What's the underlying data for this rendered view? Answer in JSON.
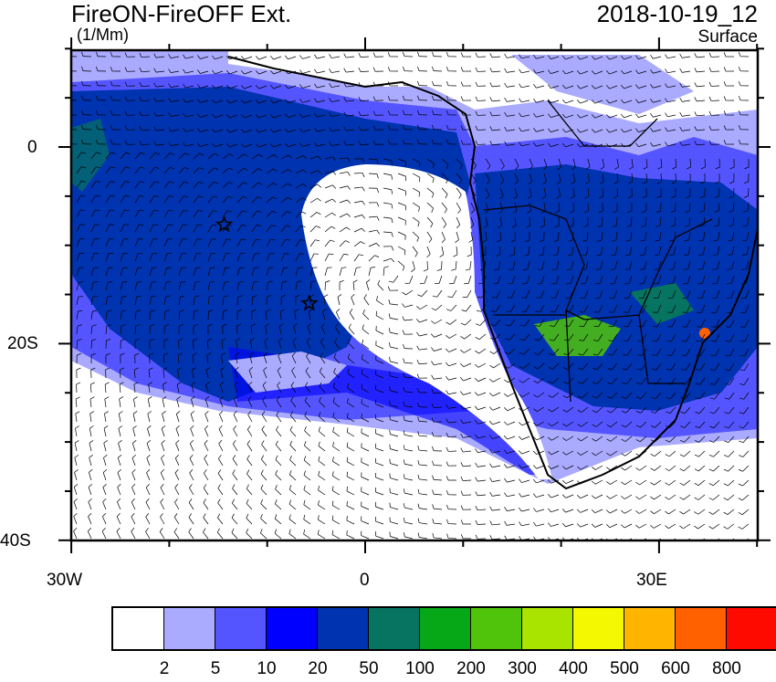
{
  "header": {
    "title": "FireON-FireOFF Ext.",
    "units": "(1/Mm)",
    "datetime": "2018-10-19_12",
    "level": "Surface"
  },
  "axes": {
    "lon_ticks": [
      "30W",
      "0",
      "30E"
    ],
    "lat_ticks": [
      "0",
      "20S",
      "40S"
    ],
    "lon_range": [
      -30,
      40
    ],
    "lat_range": [
      -40,
      10
    ]
  },
  "colorbar": {
    "labels": [
      "2",
      "5",
      "10",
      "20",
      "50",
      "100",
      "200",
      "300",
      "400",
      "500",
      "600",
      "800"
    ],
    "colors": [
      "#ffffff",
      "#aaaaff",
      "#5555ff",
      "#0000ff",
      "#0033b0",
      "#067460",
      "#06a818",
      "#50c40a",
      "#a8e400",
      "#f4f800",
      "#ffb400",
      "#ff6000",
      "#ff0a00"
    ]
  },
  "markers": [
    {
      "type": "star",
      "lon": -14.4,
      "lat": -7.9
    },
    {
      "type": "star",
      "lon": -5.7,
      "lat": -15.9
    }
  ]
}
